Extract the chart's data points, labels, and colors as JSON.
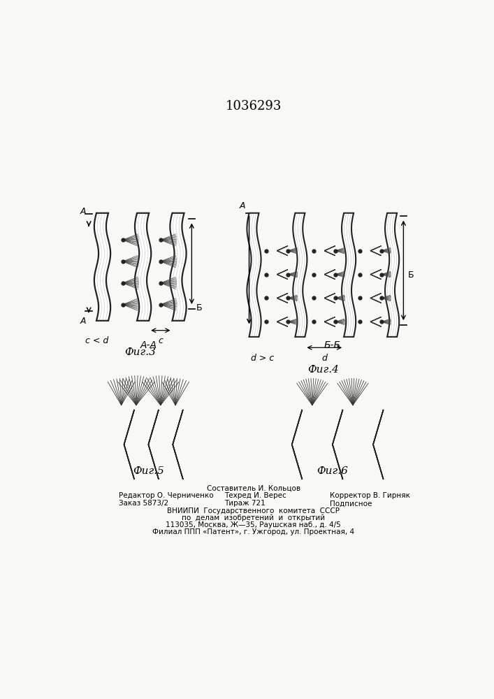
{
  "title": "1036293",
  "bg_color": "#f8f8f5",
  "fig3_label": "Фиг.3",
  "fig4_label": "Фиг.4",
  "fig5_label": "Фиг.5",
  "fig6_label": "Фиг.6",
  "section_AA": "A-A",
  "section_BB": "Б-Б",
  "label_A": "A",
  "label_B": "Б",
  "annot3_c_lt_d": "c < d",
  "annot3_c": "c",
  "annot4_d_gt_c": "d > c",
  "annot4_d": "d",
  "footer_line1": "Составитель И. Кольцов",
  "footer_line2_left": "Редактор О. Черниченко",
  "footer_line2_mid": "Техред И. Верес",
  "footer_line2_right": "Корректор В. Гирняк",
  "footer_line3_left": "Заказ 5873/2",
  "footer_line3_mid": "Тираж 721",
  "footer_line3_right": "Подписное",
  "footer_line4": "ВНИИПИ  Государственного  комитета  СССР",
  "footer_line5": "по  делам  изобретений  и  открытий",
  "footer_line6": "113035, Москва, Ж—35, Раушская наб., д. 4/5",
  "footer_line7": "Филиал ППП «Патент», г. Ужгород, ул. Проектная, 4"
}
